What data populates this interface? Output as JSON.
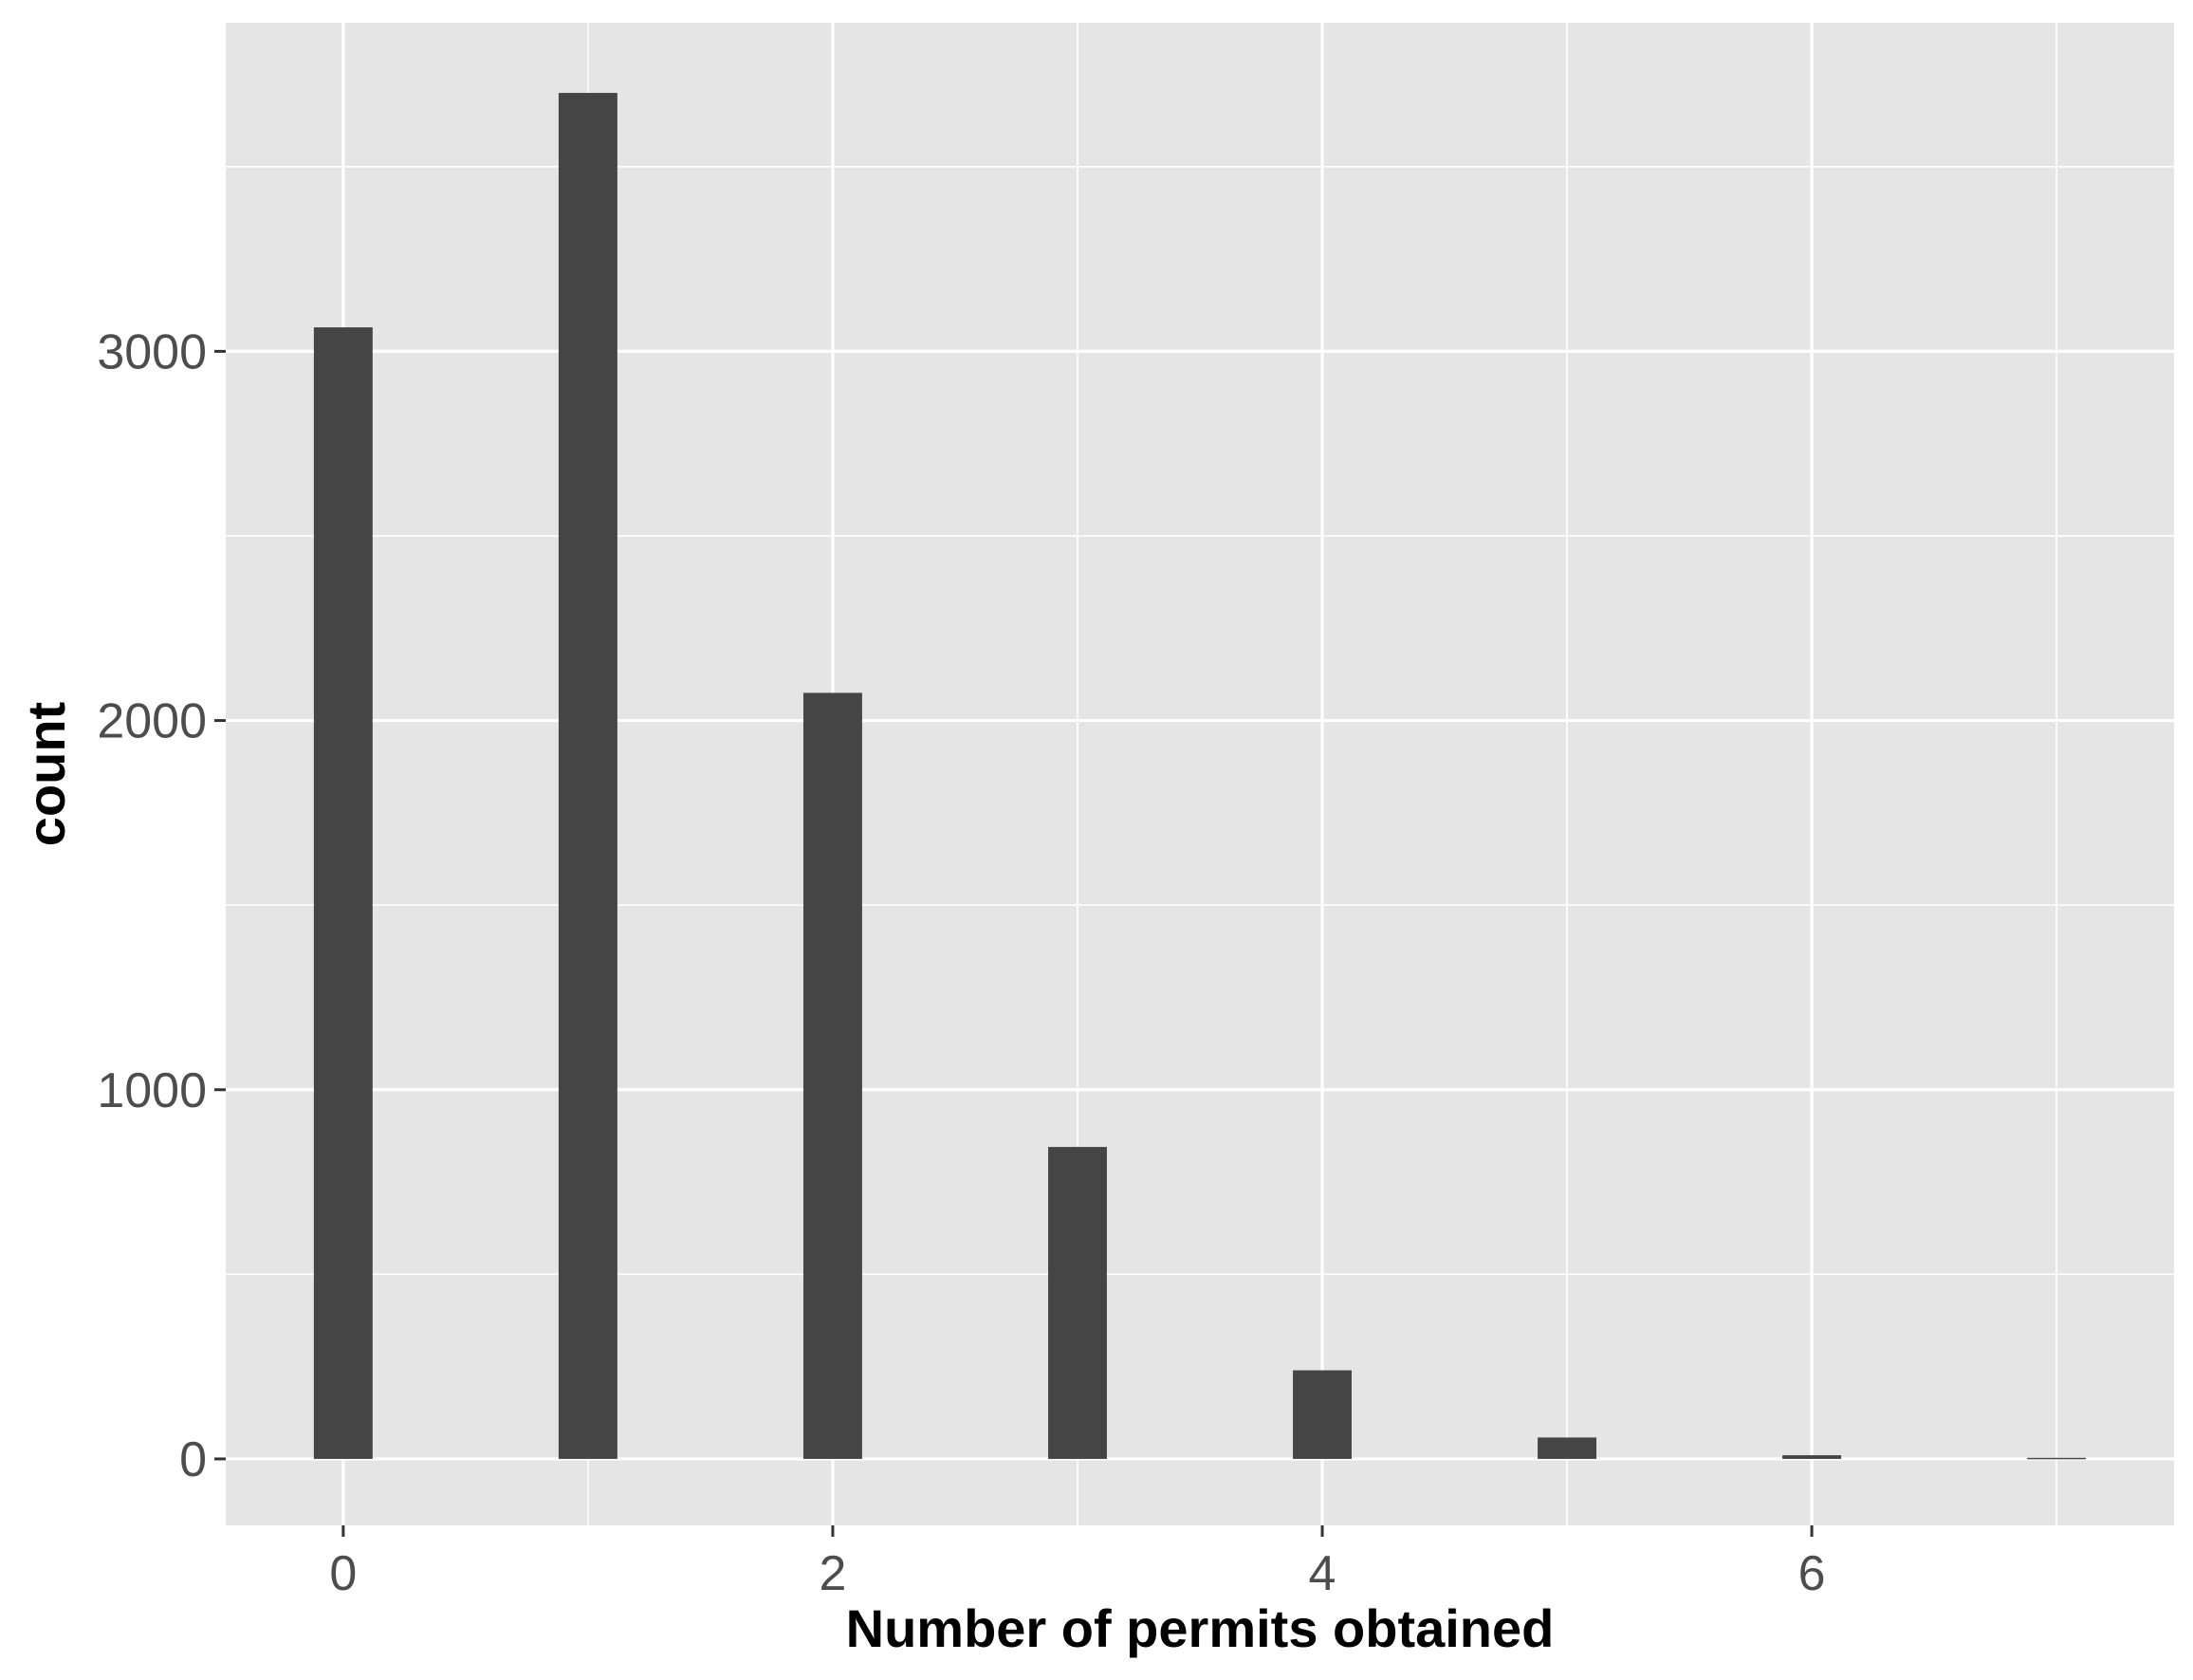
{
  "chart_data": {
    "type": "bar",
    "title": "",
    "xlabel": "Number of permits obtained",
    "ylabel": "count",
    "x": [
      0,
      1,
      2,
      3,
      4,
      5,
      6,
      7
    ],
    "values": [
      3065,
      3700,
      2075,
      845,
      240,
      58,
      10,
      3
    ],
    "xlim": [
      -0.48,
      7.48
    ],
    "ylim": [
      -180,
      3890
    ],
    "x_ticks": [
      0,
      2,
      4,
      6
    ],
    "x_tick_labels": [
      "0",
      "2",
      "4",
      "6"
    ],
    "x_minor_ticks": [
      1,
      3,
      5,
      7
    ],
    "y_ticks": [
      0,
      1000,
      2000,
      3000
    ],
    "y_tick_labels": [
      "0",
      "1000",
      "2000",
      "3000"
    ],
    "y_minor_ticks": [
      500,
      1500,
      2500,
      3500
    ],
    "bar_width": 0.24,
    "grid": true,
    "legend": "none",
    "colors": {
      "bar": "#454545",
      "panel": "#e5e5e5",
      "grid": "#ffffff",
      "tick_text": "#4d4d4d",
      "axis_title": "#000000"
    }
  }
}
